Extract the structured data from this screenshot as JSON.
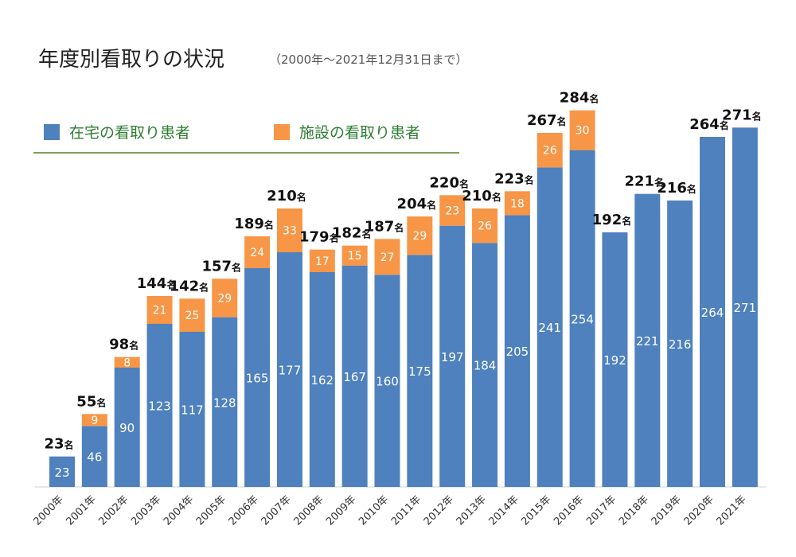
{
  "title": "年度別看取りの状況",
  "subtitle": "（2000年～2021年12月31日まで）",
  "colors": {
    "home": "#4e81bd",
    "facility": "#f79646"
  },
  "legend": {
    "home": "在宅の看取り患者",
    "facility": "施設の看取り患者"
  },
  "chart_data": {
    "type": "bar",
    "stacked": true,
    "categories": [
      "2000年",
      "2001年",
      "2002年",
      "2003年",
      "2004年",
      "2005年",
      "2006年",
      "2007年",
      "2008年",
      "2009年",
      "2010年",
      "2011年",
      "2012年",
      "2013年",
      "2014年",
      "2015年",
      "2016年",
      "2017年",
      "2018年",
      "2019年",
      "2020年",
      "2021年"
    ],
    "series": [
      {
        "name": "在宅の看取り患者",
        "values": [
          23,
          46,
          90,
          123,
          117,
          128,
          165,
          177,
          162,
          167,
          160,
          175,
          197,
          184,
          205,
          241,
          254,
          192,
          221,
          216,
          264,
          271
        ]
      },
      {
        "name": "施設の看取り患者",
        "values": [
          0,
          9,
          8,
          21,
          25,
          29,
          24,
          33,
          17,
          15,
          27,
          29,
          23,
          26,
          18,
          26,
          30,
          0,
          0,
          0,
          0,
          0
        ]
      }
    ],
    "totals": [
      23,
      55,
      98,
      144,
      142,
      157,
      189,
      210,
      179,
      182,
      187,
      204,
      220,
      210,
      223,
      267,
      284,
      192,
      221,
      216,
      264,
      271
    ],
    "total_suffix": "名",
    "ylim": [
      0,
      300
    ],
    "grid": false,
    "legend_position": "top-left"
  }
}
